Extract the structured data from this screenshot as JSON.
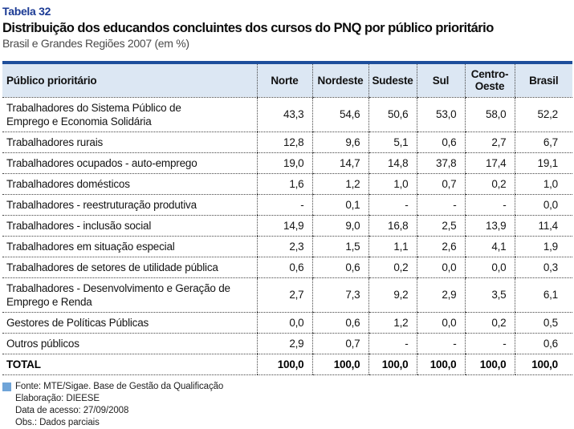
{
  "header": {
    "table_label": "Tabela 32",
    "title": "Distribuição dos educandos concluintes dos cursos do PNQ por público prioritário",
    "subtitle": "Brasil e Grandes Regiões 2007 (em %)"
  },
  "table": {
    "columns": [
      "Público prioritário",
      "Norte",
      "Nordeste",
      "Sudeste",
      "Sul",
      "Centro-Oeste",
      "Brasil"
    ],
    "rows": [
      {
        "label": "Trabalhadores do Sistema Público de\nEmprego e Economia Solidária",
        "values": [
          "43,3",
          "54,6",
          "50,6",
          "53,0",
          "58,0",
          "52,2"
        ]
      },
      {
        "label": "Trabalhadores rurais",
        "values": [
          "12,8",
          "9,6",
          "5,1",
          "0,6",
          "2,7",
          "6,7"
        ]
      },
      {
        "label": "Trabalhadores ocupados - auto-emprego",
        "values": [
          "19,0",
          "14,7",
          "14,8",
          "37,8",
          "17,4",
          "19,1"
        ]
      },
      {
        "label": "Trabalhadores domésticos",
        "values": [
          "1,6",
          "1,2",
          "1,0",
          "0,7",
          "0,2",
          "1,0"
        ]
      },
      {
        "label": "Trabalhadores - reestruturação produtiva",
        "values": [
          "-",
          "0,1",
          "-",
          "-",
          "-",
          "0,0"
        ]
      },
      {
        "label": "Trabalhadores - inclusão social",
        "values": [
          "14,9",
          "9,0",
          "16,8",
          "2,5",
          "13,9",
          "11,4"
        ]
      },
      {
        "label": "Trabalhadores em situação especial",
        "values": [
          "2,3",
          "1,5",
          "1,1",
          "2,6",
          "4,1",
          "1,9"
        ]
      },
      {
        "label": "Trabalhadores de setores de utilidade pública",
        "values": [
          "0,6",
          "0,6",
          "0,2",
          "0,0",
          "0,0",
          "0,3"
        ]
      },
      {
        "label": "Trabalhadores - Desenvolvimento e Geração de\nEmprego e Renda",
        "values": [
          "2,7",
          "7,3",
          "9,2",
          "2,9",
          "3,5",
          "6,1"
        ]
      },
      {
        "label": "Gestores de Políticas Públicas",
        "values": [
          "0,0",
          "0,6",
          "1,2",
          "0,0",
          "0,2",
          "0,5"
        ]
      },
      {
        "label": "Outros públicos",
        "values": [
          "2,9",
          "0,7",
          "-",
          "-",
          "-",
          "0,6"
        ]
      }
    ],
    "total": {
      "label": "TOTAL",
      "values": [
        "100,0",
        "100,0",
        "100,0",
        "100,0",
        "100,0",
        "100,0"
      ]
    }
  },
  "footnotes": [
    "Fonte: MTE/Sigae. Base de Gestão da Qualificação",
    "Elaboração: DIEESE",
    "Data de acesso: 27/09/2008",
    "Obs.: Dados parciais"
  ],
  "colors": {
    "accent_navy": "#1d4e9b",
    "header_bg": "#dce7f3",
    "label_blue": "#1b3a94",
    "note_square": "#6fa4d8",
    "dotted_line": "#444444"
  }
}
